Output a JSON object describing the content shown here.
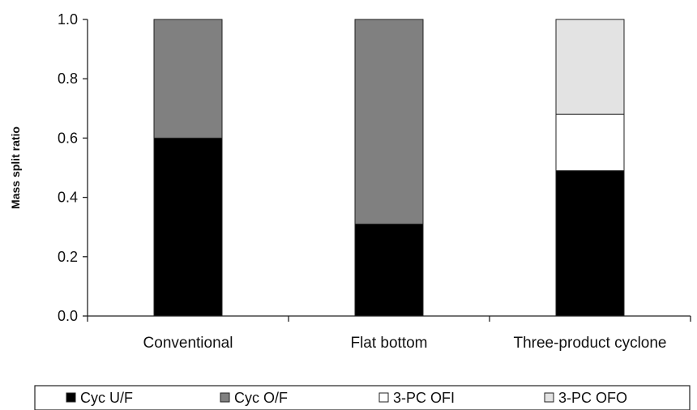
{
  "chart_data": {
    "type": "bar",
    "stacked": true,
    "categories": [
      "Conventional",
      "Flat bottom",
      "Three-product cyclone"
    ],
    "series": [
      {
        "name": "Cyc U/F",
        "values": [
          0.6,
          0.31,
          0.49
        ],
        "color": "#000000"
      },
      {
        "name": "Cyc O/F",
        "values": [
          0.4,
          0.69,
          0.0
        ],
        "color": "#808080"
      },
      {
        "name": "3-PC OFI",
        "values": [
          0.0,
          0.0,
          0.19
        ],
        "color": "#ffffff"
      },
      {
        "name": "3-PC OFO",
        "values": [
          0.0,
          0.0,
          0.32
        ],
        "color": "#e3e3e3"
      }
    ],
    "ylabel": "Mass split ratio",
    "xlabel": "",
    "ylim": [
      0,
      1.0
    ],
    "yticks": [
      "0.0",
      "0.2",
      "0.4",
      "0.6",
      "0.8",
      "1.0"
    ],
    "grid": false,
    "legend_position": "bottom"
  }
}
